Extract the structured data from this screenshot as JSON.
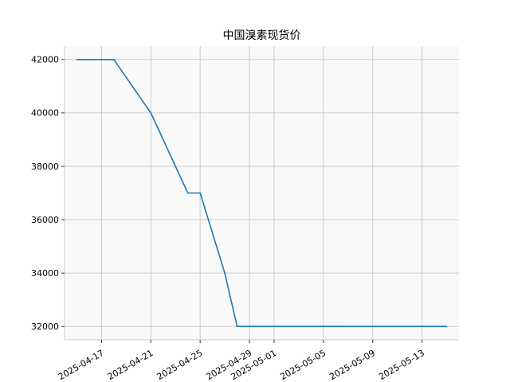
{
  "chart_data": {
    "type": "line",
    "title": "中国溴素现货价",
    "xlabel": "",
    "ylabel": "",
    "grid": true,
    "xlim": [
      "2025-04-14",
      "2025-05-16"
    ],
    "ylim": [
      31500,
      42500
    ],
    "x_ticks": [
      "2025-04-17",
      "2025-04-21",
      "2025-04-25",
      "2025-04-29",
      "2025-05-01",
      "2025-05-05",
      "2025-05-09",
      "2025-05-13"
    ],
    "y_ticks": [
      32000,
      34000,
      36000,
      38000,
      40000,
      42000
    ],
    "series": [
      {
        "color": "#1f77b4",
        "x": [
          "2025-04-15",
          "2025-04-16",
          "2025-04-17",
          "2025-04-18",
          "2025-04-21",
          "2025-04-24",
          "2025-04-25",
          "2025-04-27",
          "2025-04-28",
          "2025-04-29",
          "2025-05-06",
          "2025-05-15"
        ],
        "values": [
          42000,
          42000,
          42000,
          42000,
          40000,
          37000,
          37000,
          34000,
          32000,
          32000,
          32000,
          32000
        ]
      }
    ]
  }
}
